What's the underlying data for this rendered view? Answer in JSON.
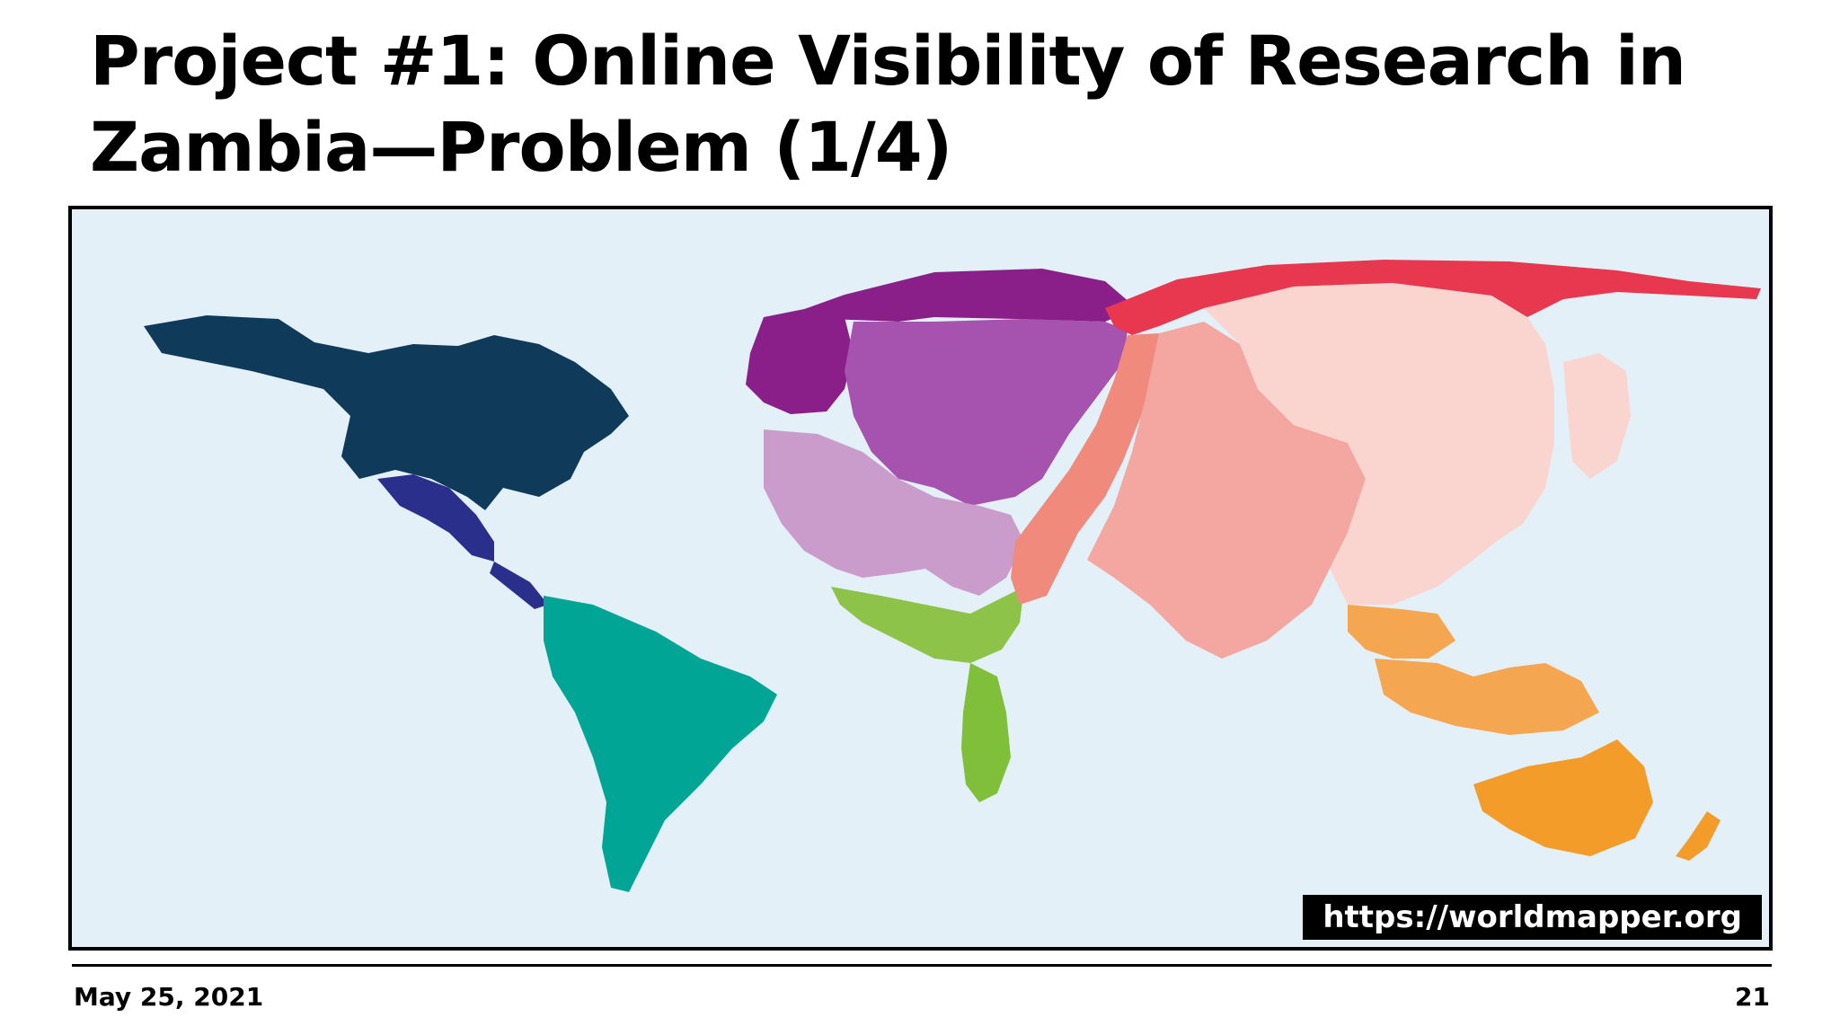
{
  "slide": {
    "title": "Project #1: Online Visibility of Research in Zambia—Problem (1/4)",
    "date": "May 25, 2021",
    "page_number": "21"
  },
  "map": {
    "type": "cartogram",
    "source_label": "https://worldmapper.org",
    "regions": [
      {
        "name": "north-america",
        "color": "#0f3a5a"
      },
      {
        "name": "central-america",
        "color": "#2b2f8c"
      },
      {
        "name": "south-america",
        "color": "#00a595"
      },
      {
        "name": "europe-west",
        "color": "#8b1f8a"
      },
      {
        "name": "europe-central",
        "color": "#a653b0"
      },
      {
        "name": "middle-east",
        "color": "#c99ccb"
      },
      {
        "name": "africa-north",
        "color": "#8ec34a"
      },
      {
        "name": "africa-south",
        "color": "#7fbf3a"
      },
      {
        "name": "russia",
        "color": "#e8384f"
      },
      {
        "name": "middle-asia",
        "color": "#f08a7c"
      },
      {
        "name": "south-asia",
        "color": "#f3a7a0"
      },
      {
        "name": "east-asia",
        "color": "#fad5cf"
      },
      {
        "name": "southeast-asia",
        "color": "#f5a650"
      },
      {
        "name": "oceania",
        "color": "#f39c2a"
      }
    ]
  }
}
